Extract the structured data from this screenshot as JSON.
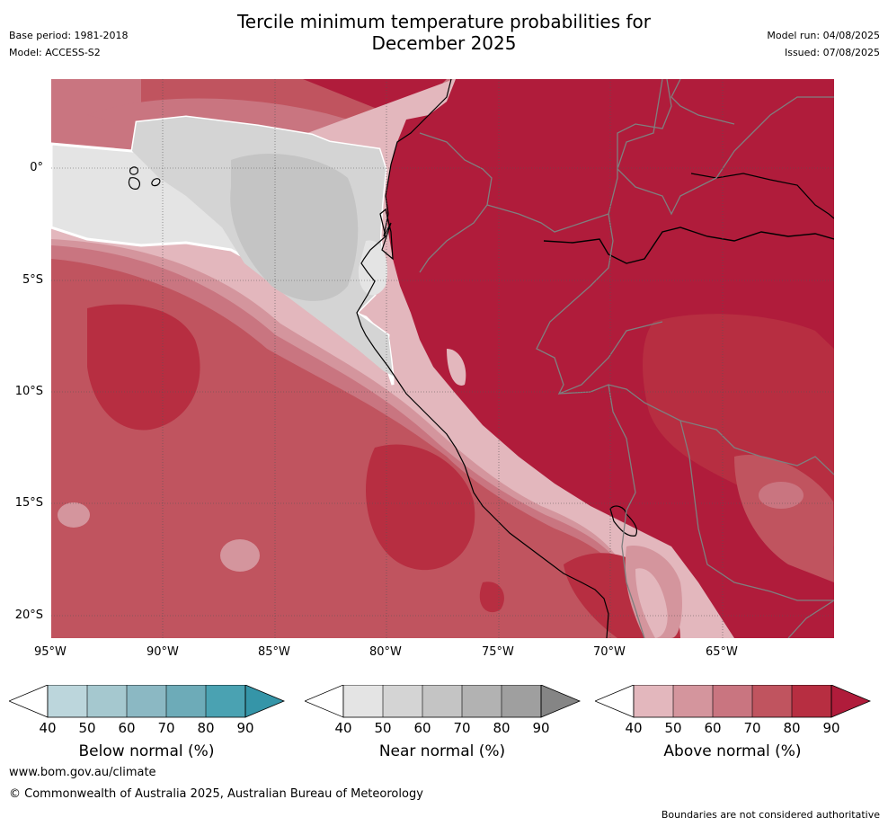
{
  "header": {
    "title_line1": "Tercile minimum temperature probabilities for",
    "title_line2": "December 2025",
    "base_period": "Base period: 1981-2018",
    "model": "Model: ACCESS-S2",
    "model_run": "Model run: 04/08/2025",
    "issued": "Issued: 07/08/2025"
  },
  "map": {
    "lat_labels": [
      "0°",
      "5°S",
      "10°S",
      "15°S",
      "20°S"
    ],
    "lon_labels": [
      "95°W",
      "90°W",
      "85°W",
      "80°W",
      "75°W",
      "70°W",
      "65°W"
    ]
  },
  "legends": {
    "below": {
      "title": "Below normal (%)",
      "ticks": [
        "40",
        "50",
        "60",
        "70",
        "80",
        "90"
      ],
      "colors": [
        "#ffffff",
        "#bcd6dc",
        "#a5c8cf",
        "#8bb8c3",
        "#6dabb8",
        "#4aa2b2",
        "#3595a8"
      ]
    },
    "near": {
      "title": "Near normal (%)",
      "ticks": [
        "40",
        "50",
        "60",
        "70",
        "80",
        "90"
      ],
      "colors": [
        "#ffffff",
        "#e4e4e4",
        "#d4d4d4",
        "#c4c4c4",
        "#b2b2b2",
        "#9f9f9f",
        "#858585"
      ]
    },
    "above": {
      "title": "Above normal (%)",
      "ticks": [
        "40",
        "50",
        "60",
        "70",
        "80",
        "90"
      ],
      "colors": [
        "#ffffff",
        "#e3b7bd",
        "#d4959d",
        "#c97580",
        "#c0545f",
        "#b72e41",
        "#b01c3b"
      ]
    }
  },
  "footer": {
    "website": "www.bom.gov.au/climate",
    "copyright": "© Commonwealth of Australia 2025, Australian Bureau of Meteorology",
    "disclaimer": "Boundaries are not considered authoritative"
  }
}
